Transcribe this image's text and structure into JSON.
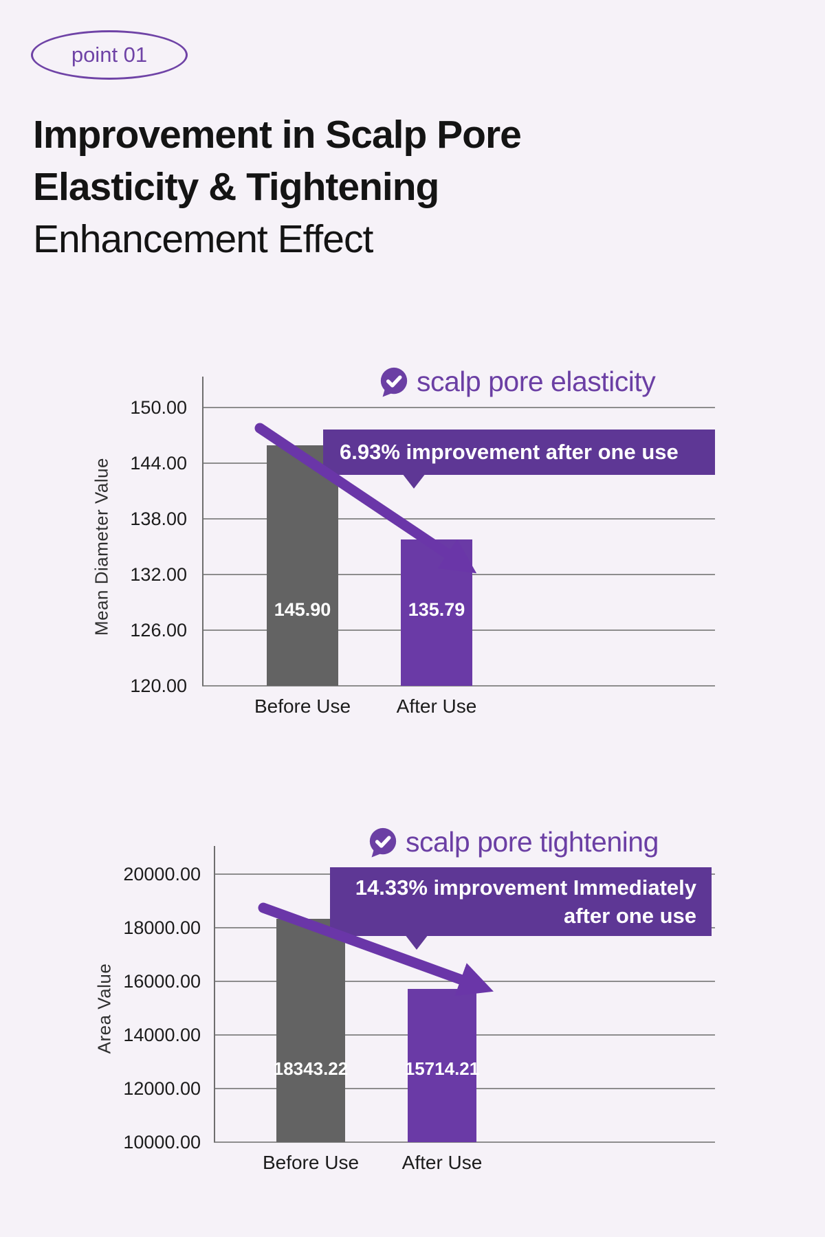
{
  "badge": {
    "label": "point 01",
    "color": "#6f43a6"
  },
  "heading": {
    "line1": "Improvement in Scalp Pore",
    "line2": "Elasticity & Tightening",
    "line3": "Enhancement Effect"
  },
  "chart_data": [
    {
      "type": "bar",
      "title": "scalp pore elasticity",
      "callout_lines": [
        "6.93% improvement after one use"
      ],
      "ylabel": "Mean Diameter Value",
      "categories": [
        "Before Use",
        "After Use"
      ],
      "values": [
        145.9,
        135.79
      ],
      "value_labels": [
        "145.90",
        "135.79"
      ],
      "yticks": [
        150,
        144,
        138,
        132,
        126,
        120
      ],
      "ytick_labels": [
        "150.00",
        "144.00",
        "138.00",
        "132.00",
        "126.00",
        "120.00"
      ],
      "ylim": [
        120,
        150
      ],
      "grid": true,
      "legend": false,
      "bar_colors": [
        "#636363",
        "#6a3aa6"
      ],
      "annotation": "downward trend arrow from Before Use bar to After Use bar"
    },
    {
      "type": "bar",
      "title": "scalp pore tightening",
      "callout_lines": [
        "14.33% improvement Immediately",
        "after one use"
      ],
      "ylabel": "Area Value",
      "categories": [
        "Before Use",
        "After Use"
      ],
      "values": [
        18343.22,
        15714.21
      ],
      "value_labels": [
        "18343.22",
        "15714.21"
      ],
      "yticks": [
        20000,
        18000,
        16000,
        14000,
        12000,
        10000
      ],
      "ytick_labels": [
        "20000.00",
        "18000.00",
        "16000.00",
        "14000.00",
        "12000.00",
        "10000.00"
      ],
      "ylim": [
        10000,
        20000
      ],
      "grid": true,
      "legend": false,
      "bar_colors": [
        "#636363",
        "#6a3aa6"
      ],
      "annotation": "downward trend arrow from Before Use bar to After Use bar"
    }
  ],
  "colors": {
    "background": "#f6f2f8",
    "accent_purple": "#6b3fa4",
    "banner_purple": "#5e3795",
    "bar_purple": "#6a3aa6",
    "bar_gray": "#636363",
    "arrow_purple": "#6a36a8",
    "gridline": "#8d8d8d",
    "text_dark": "#141414"
  }
}
